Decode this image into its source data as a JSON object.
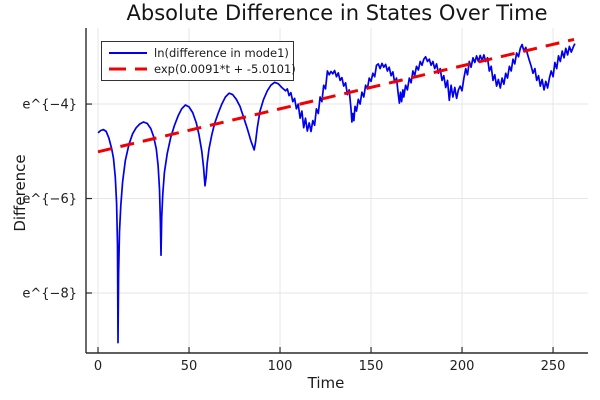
{
  "chart_data": {
    "type": "line",
    "title": "Absolute Difference in States Over Time",
    "xlabel": "Time",
    "ylabel": "Difference",
    "xlim": [
      -6.6,
      269.2
    ],
    "ylim": [
      -9.27,
      -2.39
    ],
    "grid": true,
    "legend_position": "top-left",
    "xticks": {
      "values": [
        0,
        50,
        100,
        150,
        200,
        250
      ],
      "labels": [
        "0",
        "50",
        "100",
        "150",
        "200",
        "250"
      ]
    },
    "yticks": {
      "values": [
        -4,
        -6,
        -8
      ],
      "labels": [
        "e^{−4}",
        "e^{−6}",
        "e^{−8}"
      ]
    },
    "y_scale_note": "y axis shows ln of absolute difference; tick labels are e^{k}",
    "series": [
      {
        "name": "ln(difference in mode1)",
        "color": "#0000ee",
        "style": "solid",
        "width": 1.7,
        "points": [
          [
            0,
            -4.61
          ],
          [
            1.5,
            -4.56
          ],
          [
            3,
            -4.54
          ],
          [
            4.5,
            -4.58
          ],
          [
            6,
            -4.72
          ],
          [
            7.5,
            -4.95
          ],
          [
            8.5,
            -5.15
          ],
          [
            9.5,
            -5.55
          ],
          [
            10.2,
            -6.1
          ],
          [
            10.7,
            -7.0
          ],
          [
            11,
            -9.05
          ],
          [
            11.3,
            -7.6
          ],
          [
            11.8,
            -6.7
          ],
          [
            12.5,
            -6.15
          ],
          [
            13.5,
            -5.65
          ],
          [
            15,
            -5.2
          ],
          [
            17,
            -4.85
          ],
          [
            19,
            -4.63
          ],
          [
            21,
            -4.5
          ],
          [
            23,
            -4.42
          ],
          [
            25,
            -4.38
          ],
          [
            27,
            -4.41
          ],
          [
            29,
            -4.52
          ],
          [
            30.5,
            -4.68
          ],
          [
            32,
            -4.95
          ],
          [
            33,
            -5.3
          ],
          [
            33.8,
            -5.8
          ],
          [
            34.3,
            -6.5
          ],
          [
            34.6,
            -7.2
          ],
          [
            35,
            -6.4
          ],
          [
            35.6,
            -5.9
          ],
          [
            36.5,
            -5.45
          ],
          [
            38,
            -5.05
          ],
          [
            40,
            -4.7
          ],
          [
            42,
            -4.45
          ],
          [
            44,
            -4.25
          ],
          [
            46,
            -4.1
          ],
          [
            48,
            -4.02
          ],
          [
            50,
            -4.06
          ],
          [
            52,
            -4.18
          ],
          [
            54,
            -4.4
          ],
          [
            55.5,
            -4.65
          ],
          [
            57,
            -5.0
          ],
          [
            58,
            -5.35
          ],
          [
            58.8,
            -5.73
          ],
          [
            59.4,
            -5.55
          ],
          [
            60,
            -5.25
          ],
          [
            61,
            -4.95
          ],
          [
            62.5,
            -4.65
          ],
          [
            64,
            -4.42
          ],
          [
            66,
            -4.2
          ],
          [
            68,
            -4.0
          ],
          [
            70,
            -3.85
          ],
          [
            72,
            -3.77
          ],
          [
            74,
            -3.8
          ],
          [
            76,
            -3.9
          ],
          [
            78,
            -4.05
          ],
          [
            80,
            -4.28
          ],
          [
            82,
            -4.52
          ],
          [
            84,
            -4.78
          ],
          [
            85.8,
            -4.97
          ],
          [
            86.6,
            -4.8
          ],
          [
            87.5,
            -4.5
          ],
          [
            89,
            -4.15
          ],
          [
            91,
            -3.9
          ],
          [
            93,
            -3.72
          ],
          [
            95,
            -3.6
          ],
          [
            97,
            -3.54
          ],
          [
            99,
            -3.57
          ],
          [
            101,
            -3.65
          ],
          [
            103,
            -3.72
          ],
          [
            104,
            -3.68
          ],
          [
            105,
            -3.82
          ],
          [
            106,
            -3.76
          ],
          [
            107,
            -3.95
          ],
          [
            108,
            -3.88
          ],
          [
            109,
            -4.1
          ],
          [
            110,
            -4.0
          ],
          [
            111,
            -4.3
          ],
          [
            112,
            -4.15
          ],
          [
            113,
            -4.5
          ],
          [
            114,
            -4.3
          ],
          [
            115,
            -4.57
          ],
          [
            116,
            -4.4
          ],
          [
            117,
            -4.58
          ],
          [
            118,
            -4.35
          ],
          [
            119,
            -4.45
          ],
          [
            120,
            -4.1
          ],
          [
            121,
            -4.2
          ],
          [
            122,
            -3.85
          ],
          [
            123,
            -3.95
          ],
          [
            124,
            -3.6
          ],
          [
            125,
            -3.68
          ],
          [
            126,
            -3.3
          ],
          [
            127,
            -3.38
          ],
          [
            128,
            -3.31
          ],
          [
            129,
            -3.36
          ],
          [
            130,
            -3.29
          ],
          [
            131,
            -3.42
          ],
          [
            132,
            -3.34
          ],
          [
            133,
            -3.5
          ],
          [
            134,
            -3.44
          ],
          [
            135,
            -3.62
          ],
          [
            136,
            -3.55
          ],
          [
            137,
            -3.8
          ],
          [
            138,
            -3.7
          ],
          [
            139,
            -4.1
          ],
          [
            139.5,
            -4.38
          ],
          [
            140,
            -4.2
          ],
          [
            140.6,
            -4.35
          ],
          [
            141.2,
            -4.05
          ],
          [
            142,
            -4.15
          ],
          [
            143,
            -3.9
          ],
          [
            144,
            -4.0
          ],
          [
            145,
            -3.75
          ],
          [
            146,
            -3.85
          ],
          [
            147,
            -3.6
          ],
          [
            148,
            -3.68
          ],
          [
            149,
            -3.45
          ],
          [
            150,
            -3.52
          ],
          [
            151,
            -3.35
          ],
          [
            152,
            -3.42
          ],
          [
            153,
            -3.18
          ],
          [
            154,
            -3.15
          ],
          [
            155,
            -3.25
          ],
          [
            156,
            -3.14
          ],
          [
            157,
            -3.22
          ],
          [
            158,
            -3.16
          ],
          [
            159,
            -3.3
          ],
          [
            160,
            -3.22
          ],
          [
            161,
            -3.4
          ],
          [
            162,
            -3.32
          ],
          [
            163,
            -3.55
          ],
          [
            164,
            -3.45
          ],
          [
            165,
            -3.8
          ],
          [
            165.6,
            -3.98
          ],
          [
            166.2,
            -3.75
          ],
          [
            166.8,
            -3.95
          ],
          [
            167.5,
            -3.7
          ],
          [
            168,
            -3.85
          ],
          [
            169,
            -3.6
          ],
          [
            170,
            -3.7
          ],
          [
            171,
            -3.45
          ],
          [
            172,
            -3.55
          ],
          [
            173,
            -3.3
          ],
          [
            174,
            -3.4
          ],
          [
            175,
            -3.2
          ],
          [
            176,
            -3.28
          ],
          [
            177,
            -3.1
          ],
          [
            178,
            -3.18
          ],
          [
            179,
            -3.05
          ],
          [
            180,
            -3.0
          ],
          [
            181,
            -3.1
          ],
          [
            182,
            -3.05
          ],
          [
            183,
            -3.18
          ],
          [
            184,
            -3.1
          ],
          [
            185,
            -3.25
          ],
          [
            186,
            -3.15
          ],
          [
            187,
            -3.35
          ],
          [
            188,
            -3.25
          ],
          [
            189,
            -3.5
          ],
          [
            190,
            -3.4
          ],
          [
            191,
            -3.65
          ],
          [
            192,
            -3.5
          ],
          [
            193,
            -3.92
          ],
          [
            194,
            -3.6
          ],
          [
            195,
            -3.85
          ],
          [
            196,
            -3.65
          ],
          [
            197,
            -3.88
          ],
          [
            198,
            -3.7
          ],
          [
            199,
            -3.62
          ],
          [
            200,
            -3.72
          ],
          [
            201,
            -3.45
          ],
          [
            202,
            -3.25
          ],
          [
            203,
            -3.38
          ],
          [
            204,
            -3.1
          ],
          [
            205,
            -3.22
          ],
          [
            206,
            -3.02
          ],
          [
            207,
            -3.12
          ],
          [
            208,
            -2.98
          ],
          [
            209,
            -3.1
          ],
          [
            210,
            -2.97
          ],
          [
            211,
            -3.08
          ],
          [
            212,
            -2.96
          ],
          [
            213,
            -3.1
          ],
          [
            214,
            -3.02
          ],
          [
            215,
            -3.3
          ],
          [
            216,
            -3.2
          ],
          [
            217,
            -3.5
          ],
          [
            218,
            -3.38
          ],
          [
            219,
            -3.62
          ],
          [
            220,
            -3.48
          ],
          [
            221,
            -3.66
          ],
          [
            222,
            -3.45
          ],
          [
            223,
            -3.58
          ],
          [
            224,
            -3.35
          ],
          [
            225,
            -3.45
          ],
          [
            226,
            -3.2
          ],
          [
            227,
            -3.3
          ],
          [
            228,
            -3.05
          ],
          [
            229,
            -3.15
          ],
          [
            230,
            -2.92
          ],
          [
            231,
            -3.0
          ],
          [
            232,
            -2.82
          ],
          [
            233,
            -2.74
          ],
          [
            234,
            -2.88
          ],
          [
            235,
            -2.8
          ],
          [
            236,
            -2.95
          ],
          [
            237,
            -3.08
          ],
          [
            238,
            -3.2
          ],
          [
            239,
            -3.35
          ],
          [
            240,
            -3.25
          ],
          [
            241,
            -3.5
          ],
          [
            242,
            -3.4
          ],
          [
            243,
            -3.62
          ],
          [
            244,
            -3.48
          ],
          [
            245,
            -3.7
          ],
          [
            246,
            -3.52
          ],
          [
            247,
            -3.66
          ],
          [
            248,
            -3.45
          ],
          [
            249,
            -3.3
          ],
          [
            250,
            -3.42
          ],
          [
            251,
            -3.12
          ],
          [
            252,
            -3.25
          ],
          [
            253,
            -2.98
          ],
          [
            254,
            -3.1
          ],
          [
            255,
            -2.88
          ],
          [
            256,
            -3.02
          ],
          [
            257,
            -2.82
          ],
          [
            258,
            -2.96
          ],
          [
            259,
            -2.78
          ],
          [
            260,
            -2.9
          ],
          [
            261,
            -2.8
          ],
          [
            262,
            -2.72
          ]
        ]
      },
      {
        "name": "exp(0.0091*t + -5.0101)",
        "color": "#f10000",
        "style": "dashed",
        "width": 3,
        "slope": 0.0091,
        "intercept": -5.0101,
        "points": [
          [
            0,
            -5.0101
          ],
          [
            261.5,
            -2.6305
          ]
        ]
      }
    ]
  },
  "colors": {
    "axis": "#2b2b2b",
    "grid": "#e6e6e6",
    "tick_text": "#202020",
    "background": "#ffffff"
  }
}
